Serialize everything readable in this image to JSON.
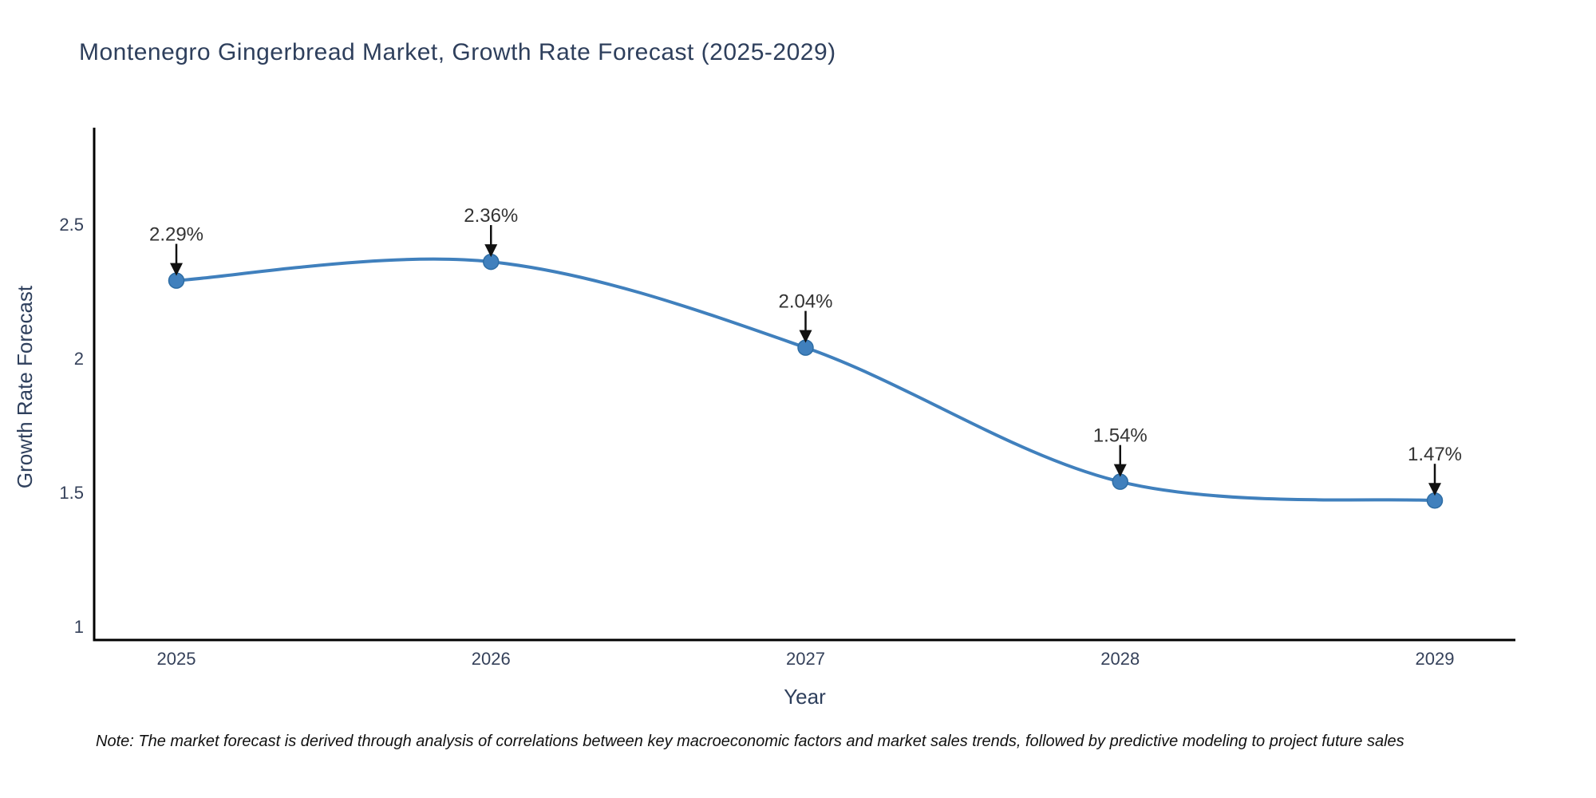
{
  "title": "Montenegro Gingerbread Market, Growth Rate Forecast (2025-2029)",
  "note": "Note: The market forecast is derived through analysis of correlations between key macroeconomic factors and market sales trends, followed by predictive modeling to project future sales",
  "chart_data": {
    "type": "line",
    "title": "Montenegro Gingerbread Market, Growth Rate Forecast (2025-2029)",
    "xlabel": "Year",
    "ylabel": "Growth Rate Forecast",
    "x": [
      2025,
      2026,
      2027,
      2028,
      2029
    ],
    "x_labels": [
      "2025",
      "2026",
      "2027",
      "2028",
      "2029"
    ],
    "values": [
      2.29,
      2.36,
      2.04,
      1.54,
      1.47
    ],
    "point_labels": [
      "2.29%",
      "2.36%",
      "2.04%",
      "1.54%",
      "1.47%"
    ],
    "ytick_values": [
      1,
      1.5,
      2,
      2.5
    ],
    "ytick_labels": [
      "1",
      "1.5",
      "2",
      "2.5"
    ],
    "ylim": [
      0.95,
      2.86
    ],
    "line_shape": "spline",
    "grid": false,
    "legend": "none",
    "colors": {
      "line": "#4080bd",
      "marker": "#4080bd",
      "marker_edge": "#2e6da4",
      "axis_line": "#000000",
      "tick_label": "#35415a",
      "title": "#2e3f5c",
      "annotation_text": "#333333",
      "annotation_arrow": "#111111",
      "background": "#ffffff"
    }
  }
}
